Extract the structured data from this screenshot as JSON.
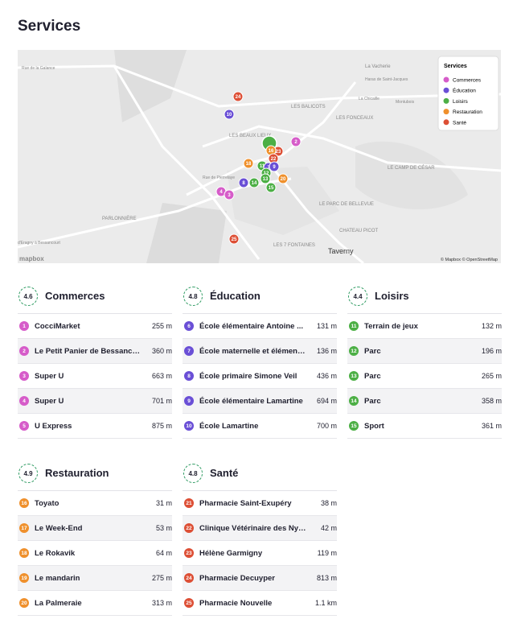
{
  "header": {
    "title": "Services"
  },
  "map": {
    "legend": {
      "title": "Services",
      "items": [
        "Commerces",
        "Éducation",
        "Loisirs",
        "Restauration",
        "Santé"
      ]
    },
    "labels": [
      "Rue de la Galance",
      "La Vacherie",
      "Haras de Saint-Jacques",
      "La Chicaille",
      "Montubois",
      "LES BALICOTS",
      "LES FONCEAUX",
      "LES BEAUX LIEUX",
      "Rue de Pierrelaye",
      "LE CAMP DE CÉSAR",
      "LE PARC DE BELLEVUE",
      "PARLONNIÈRE",
      "d'Eragny à Bessancourt",
      "CHATEAU PICOT",
      "LES 7 FONTAINES",
      "Taverny"
    ],
    "logo": "mapbox",
    "attribution": "© Mapbox © OpenStreetMap"
  },
  "sections": [
    {
      "name": "Commerces",
      "score": 4.6,
      "color": "#d65cc9",
      "items": [
        {
          "number": 1,
          "name": "CocciMarket",
          "distance": "255 m"
        },
        {
          "number": 2,
          "name": "Le Petit Panier de Bessanc…",
          "distance": "360 m"
        },
        {
          "number": 3,
          "name": "Super U",
          "distance": "663 m"
        },
        {
          "number": 4,
          "name": "Super U",
          "distance": "701 m"
        },
        {
          "number": 5,
          "name": "U Express",
          "distance": "875 m"
        }
      ]
    },
    {
      "name": "Éducation",
      "score": 4.8,
      "color": "#6a4fd6",
      "items": [
        {
          "number": 6,
          "name": "École élémentaire Antoine ...",
          "distance": "131 m"
        },
        {
          "number": 7,
          "name": "École maternelle et élémen…",
          "distance": "136 m"
        },
        {
          "number": 8,
          "name": "École primaire Simone Veil",
          "distance": "436 m"
        },
        {
          "number": 9,
          "name": "École élémentaire Lamartine",
          "distance": "694 m"
        },
        {
          "number": 10,
          "name": "École Lamartine",
          "distance": "700 m"
        }
      ]
    },
    {
      "name": "Loisirs",
      "score": 4.4,
      "color": "#4caf45",
      "items": [
        {
          "number": 11,
          "name": "Terrain de jeux",
          "distance": "132 m"
        },
        {
          "number": 12,
          "name": "Parc",
          "distance": "196 m"
        },
        {
          "number": 13,
          "name": "Parc",
          "distance": "265 m"
        },
        {
          "number": 14,
          "name": "Parc",
          "distance": "358 m"
        },
        {
          "number": 15,
          "name": "Sport",
          "distance": "361 m"
        }
      ]
    },
    {
      "name": "Restauration",
      "score": 4.9,
      "color": "#ef902c",
      "items": [
        {
          "number": 16,
          "name": "Toyato",
          "distance": "31 m"
        },
        {
          "number": 17,
          "name": "Le Week-End",
          "distance": "53 m"
        },
        {
          "number": 18,
          "name": "Le Rokavik",
          "distance": "64 m"
        },
        {
          "number": 19,
          "name": "Le mandarin",
          "distance": "275 m"
        },
        {
          "number": 20,
          "name": "La Palmeraie",
          "distance": "313 m"
        }
      ]
    },
    {
      "name": "Santé",
      "score": 4.8,
      "color": "#dd4f35",
      "items": [
        {
          "number": 21,
          "name": "Pharmacie Saint-Exupéry",
          "distance": "38 m"
        },
        {
          "number": 22,
          "name": "Clinique Vétérinaire des Ny…",
          "distance": "42 m"
        },
        {
          "number": 23,
          "name": "Hélène Garmigny",
          "distance": "119 m"
        },
        {
          "number": 24,
          "name": "Pharmacie Decuyper",
          "distance": "813 m"
        },
        {
          "number": 25,
          "name": "Pharmacie Nouvelle",
          "distance": "1.1 km"
        }
      ]
    }
  ]
}
